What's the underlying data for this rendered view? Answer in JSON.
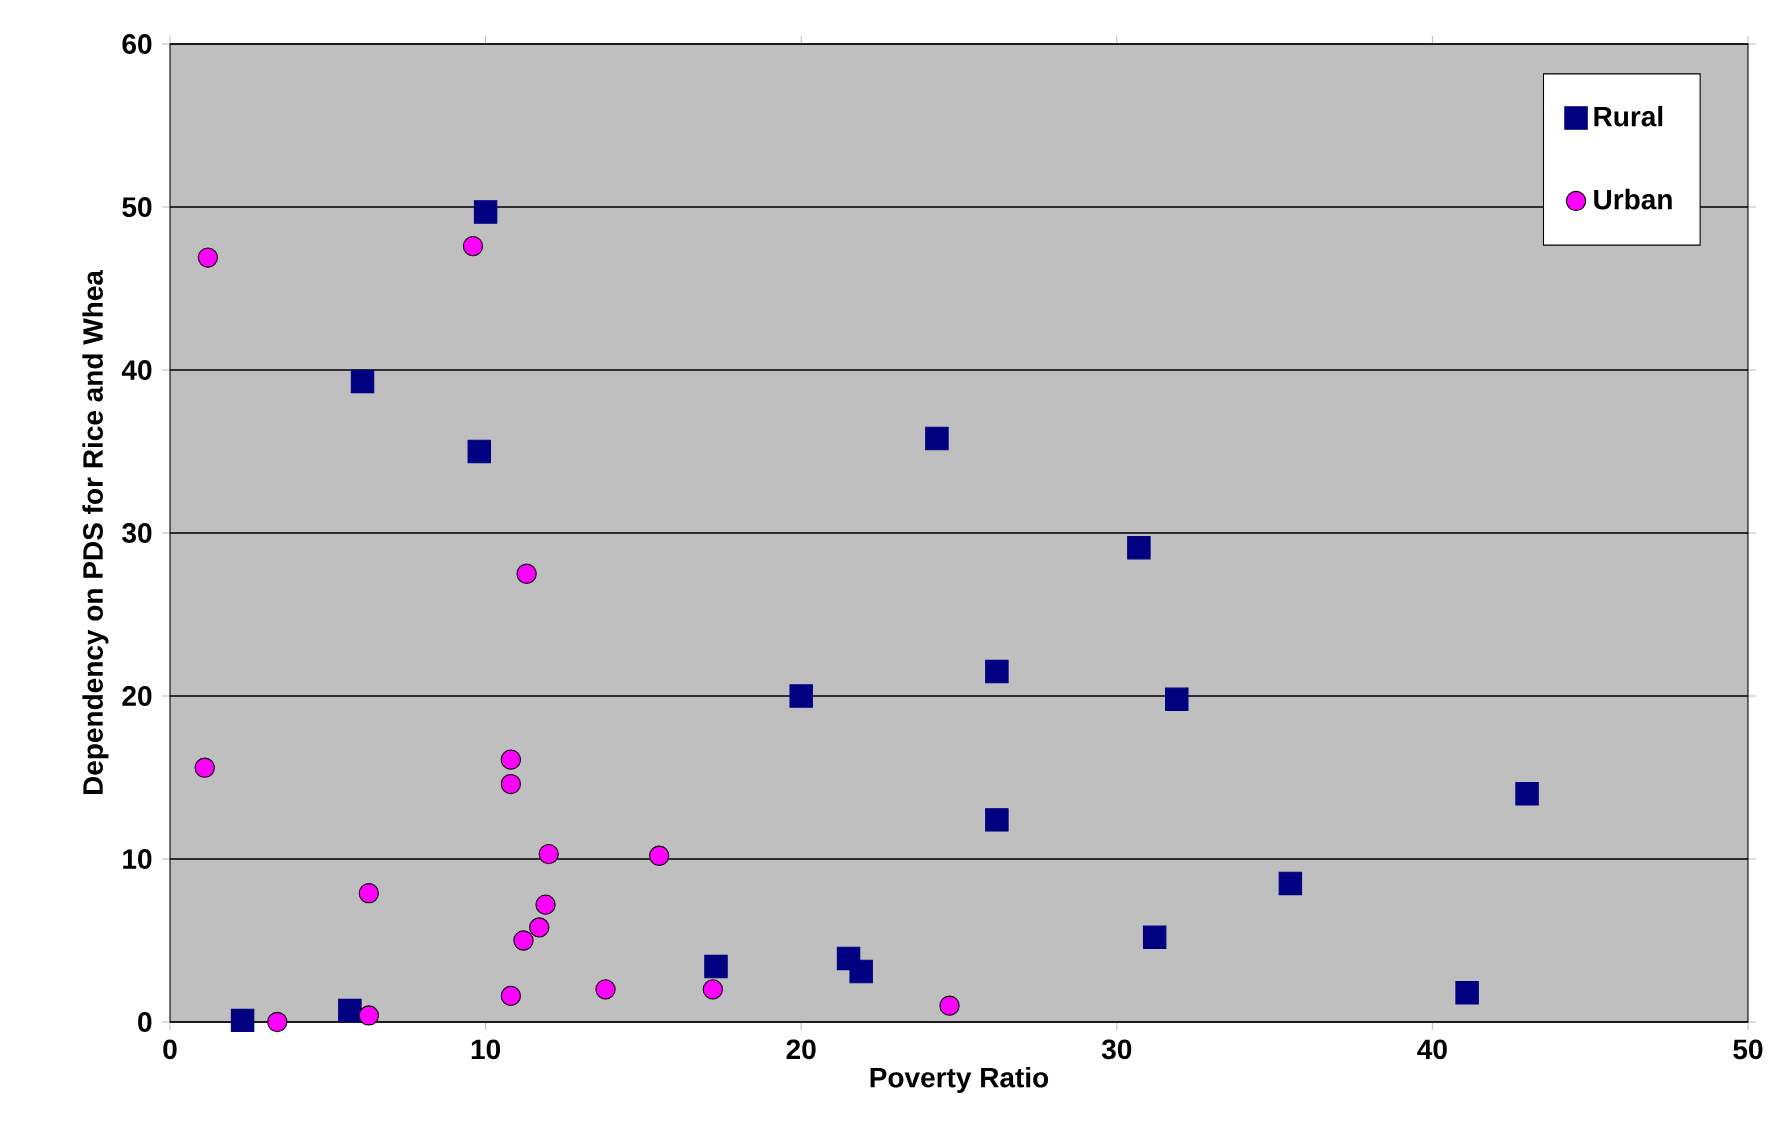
{
  "chart_data": {
    "type": "scatter",
    "xlabel": "Poverty Ratio",
    "ylabel": "Dependency on PDS for Rice and Whea",
    "xlim": [
      0,
      50
    ],
    "ylim": [
      0,
      60
    ],
    "xticks": [
      0,
      10,
      20,
      30,
      40,
      50
    ],
    "yticks": [
      0,
      10,
      20,
      30,
      40,
      50,
      60
    ],
    "grid": "y",
    "legend": "top right",
    "series": [
      {
        "name": "Rural",
        "color": "#000080",
        "marker": "square",
        "x": [
          2.3,
          5.7,
          6.1,
          10.0,
          9.8,
          17.3,
          20.0,
          21.5,
          21.9,
          24.3,
          26.2,
          26.2,
          30.7,
          31.2,
          31.9,
          35.5,
          41.1,
          43.0
        ],
        "values": [
          0.1,
          0.7,
          39.3,
          49.7,
          35.0,
          3.4,
          20.0,
          3.9,
          3.1,
          35.8,
          21.5,
          12.4,
          29.1,
          5.2,
          19.8,
          8.5,
          1.8,
          14.0
        ]
      },
      {
        "name": "Urban",
        "color": "#ff00ff",
        "marker": "circle",
        "x": [
          1.2,
          1.1,
          3.4,
          6.3,
          6.3,
          9.6,
          11.3,
          10.8,
          10.8,
          12.0,
          11.9,
          11.7,
          11.2,
          10.8,
          13.8,
          15.5,
          17.2,
          24.7
        ],
        "values": [
          46.9,
          15.6,
          0.0,
          7.9,
          0.4,
          47.6,
          27.5,
          16.1,
          14.6,
          10.3,
          7.2,
          5.8,
          5.0,
          1.6,
          2.0,
          10.2,
          2.0,
          1.0
        ]
      }
    ]
  }
}
